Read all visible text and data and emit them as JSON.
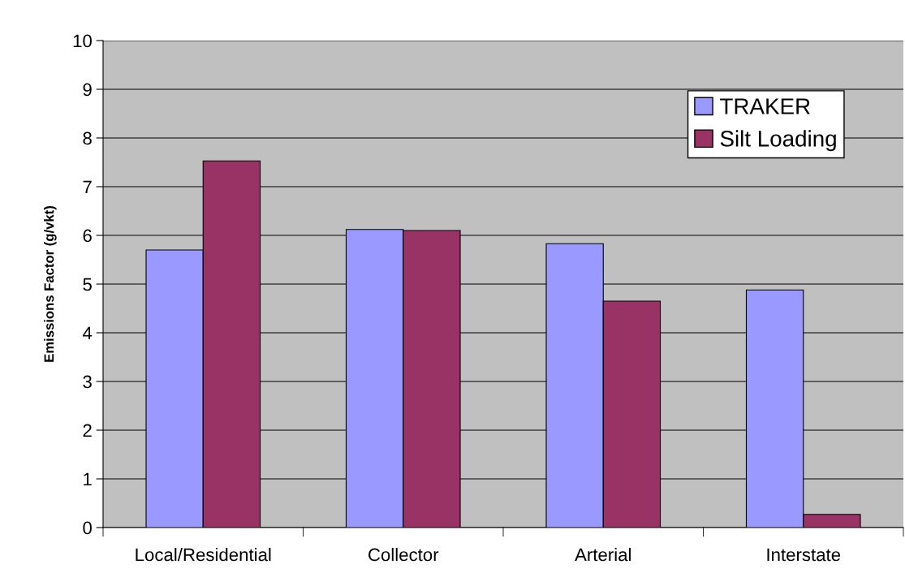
{
  "chart_data": {
    "type": "bar",
    "ylabel": "Emissions Factor (g/vkt)",
    "categories": [
      "Local/Residential",
      "Collector",
      "Arterial",
      "Interstate"
    ],
    "series": [
      {
        "name": "TRAKER",
        "color": "#9999ff",
        "values": [
          5.7,
          6.12,
          5.83,
          4.88
        ]
      },
      {
        "name": "Silt Loading",
        "color": "#993366",
        "values": [
          7.53,
          6.1,
          4.65,
          0.27
        ]
      }
    ],
    "ylim": [
      0,
      10
    ],
    "yticks": [
      0,
      1,
      2,
      3,
      4,
      5,
      6,
      7,
      8,
      9,
      10
    ],
    "grid": "y",
    "legend": "top right"
  }
}
